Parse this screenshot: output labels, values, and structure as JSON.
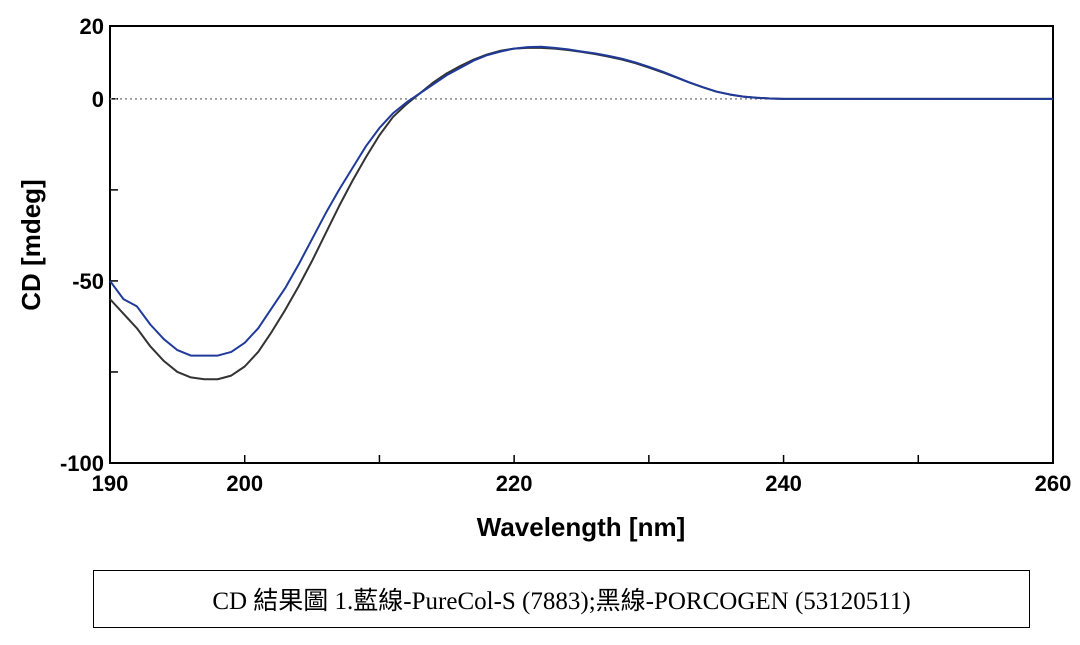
{
  "chart_data": {
    "type": "line",
    "title": "",
    "xlabel": "Wavelength [nm]",
    "ylabel": "CD [mdeg]",
    "xlim": [
      190,
      260
    ],
    "ylim": [
      -100,
      20
    ],
    "x_ticks": [
      190,
      200,
      220,
      240,
      260
    ],
    "x_minor_ticks": [
      210,
      230,
      250
    ],
    "y_ticks": [
      20,
      0,
      -50,
      -100
    ],
    "y_minor_ticks": [
      -25,
      -75
    ],
    "zero_line": true,
    "series": [
      {
        "name": "藍線-PureCol-S (7883)",
        "color": "#1f3a9a",
        "points": [
          [
            190,
            -50
          ],
          [
            191,
            -55
          ],
          [
            192,
            -57
          ],
          [
            193,
            -62
          ],
          [
            194,
            -66
          ],
          [
            195,
            -69
          ],
          [
            196,
            -70.5
          ],
          [
            197,
            -70.5
          ],
          [
            198,
            -70.5
          ],
          [
            199,
            -69.5
          ],
          [
            200,
            -67
          ],
          [
            201,
            -63
          ],
          [
            202,
            -57.5
          ],
          [
            203,
            -52
          ],
          [
            204,
            -45.5
          ],
          [
            205,
            -38.5
          ],
          [
            206,
            -31.5
          ],
          [
            207,
            -25
          ],
          [
            208,
            -19
          ],
          [
            209,
            -13
          ],
          [
            210,
            -8
          ],
          [
            211,
            -4
          ],
          [
            212,
            -1
          ],
          [
            213,
            1.5
          ],
          [
            214,
            4
          ],
          [
            215,
            6.5
          ],
          [
            216,
            8.5
          ],
          [
            217,
            10.5
          ],
          [
            218,
            12
          ],
          [
            219,
            13
          ],
          [
            220,
            13.8
          ],
          [
            221,
            14.2
          ],
          [
            222,
            14.3
          ],
          [
            223,
            14
          ],
          [
            224,
            13.6
          ],
          [
            225,
            13
          ],
          [
            226,
            12.5
          ],
          [
            227,
            11.8
          ],
          [
            228,
            11
          ],
          [
            229,
            10
          ],
          [
            230,
            8.8
          ],
          [
            231,
            7.5
          ],
          [
            232,
            6
          ],
          [
            233,
            4.5
          ],
          [
            234,
            3.2
          ],
          [
            235,
            2
          ],
          [
            236,
            1.2
          ],
          [
            237,
            0.6
          ],
          [
            238,
            0.3
          ],
          [
            239,
            0.1
          ],
          [
            240,
            0
          ],
          [
            245,
            0
          ],
          [
            250,
            0
          ],
          [
            255,
            0
          ],
          [
            260,
            0
          ]
        ]
      },
      {
        "name": "黑線-PORCOGEN (53120511)",
        "color": "#333333",
        "points": [
          [
            190,
            -55
          ],
          [
            191,
            -59
          ],
          [
            192,
            -63
          ],
          [
            193,
            -68
          ],
          [
            194,
            -72
          ],
          [
            195,
            -75
          ],
          [
            196,
            -76.5
          ],
          [
            197,
            -77
          ],
          [
            198,
            -77
          ],
          [
            199,
            -76
          ],
          [
            200,
            -73.5
          ],
          [
            201,
            -69.5
          ],
          [
            202,
            -64
          ],
          [
            203,
            -58
          ],
          [
            204,
            -51.5
          ],
          [
            205,
            -44.5
          ],
          [
            206,
            -37
          ],
          [
            207,
            -29.5
          ],
          [
            208,
            -22.5
          ],
          [
            209,
            -16
          ],
          [
            210,
            -10
          ],
          [
            211,
            -5
          ],
          [
            212,
            -1.5
          ],
          [
            213,
            1.5
          ],
          [
            214,
            4.5
          ],
          [
            215,
            7
          ],
          [
            216,
            9
          ],
          [
            217,
            10.8
          ],
          [
            218,
            12.2
          ],
          [
            219,
            13.2
          ],
          [
            220,
            13.8
          ],
          [
            221,
            14
          ],
          [
            222,
            14
          ],
          [
            223,
            13.8
          ],
          [
            224,
            13.4
          ],
          [
            225,
            12.9
          ],
          [
            226,
            12.3
          ],
          [
            227,
            11.6
          ],
          [
            228,
            10.8
          ],
          [
            229,
            9.8
          ],
          [
            230,
            8.6
          ],
          [
            231,
            7.3
          ],
          [
            232,
            5.9
          ],
          [
            233,
            4.5
          ],
          [
            234,
            3.2
          ],
          [
            235,
            2
          ],
          [
            236,
            1.2
          ],
          [
            237,
            0.6
          ],
          [
            238,
            0.3
          ],
          [
            239,
            0.1
          ],
          [
            240,
            0
          ],
          [
            245,
            0
          ],
          [
            250,
            0
          ],
          [
            255,
            0
          ],
          [
            260,
            0
          ]
        ]
      }
    ]
  },
  "caption": "CD 結果圖 1.藍線-PureCol-S (7883);黑線-PORCOGEN (53120511)"
}
